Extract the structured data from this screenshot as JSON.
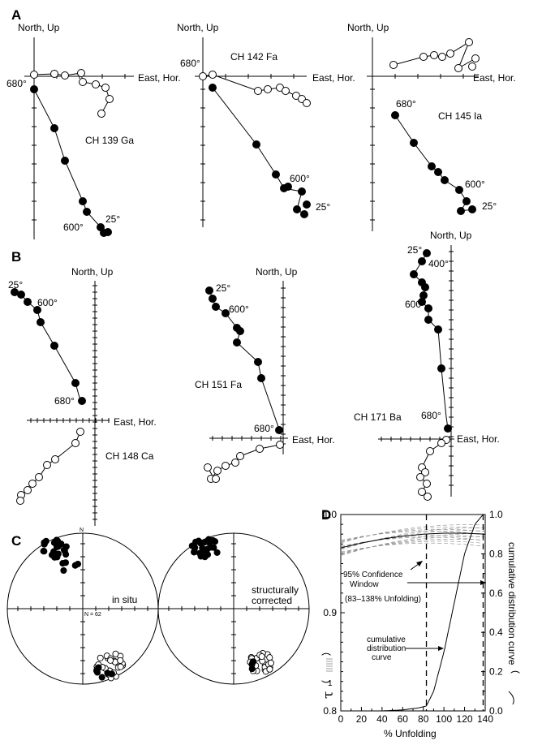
{
  "panels": {
    "A": {
      "letter": "A",
      "plots": [
        {
          "label": "CH 139 Ga",
          "axis_north": "North, Up",
          "axis_east": "East, Hor.",
          "steps": [
            "680°",
            "600°",
            "25°"
          ]
        },
        {
          "label": "CH 142 Fa",
          "axis_north": "North, Up",
          "axis_east": "East, Hor.",
          "steps": [
            "680°",
            "600°",
            "25°"
          ]
        },
        {
          "label": "CH 145 Ia",
          "axis_north": "North, Up",
          "axis_east": "East, Hor.",
          "steps": [
            "680°",
            "600°",
            "25°"
          ]
        }
      ]
    },
    "B": {
      "letter": "B",
      "plots": [
        {
          "label": "CH 148 Ca",
          "axis_north": "North, Up",
          "axis_east": "East, Hor.",
          "steps": [
            "25°",
            "600°",
            "680°"
          ]
        },
        {
          "label": "CH 151 Fa",
          "axis_north": "North, Up",
          "axis_east": "East, Hor.",
          "steps": [
            "25°",
            "600°",
            "680°"
          ]
        },
        {
          "label": "CH 171 Ba",
          "axis_north": "North, Up",
          "axis_east": "East, Hor.",
          "steps": [
            "25°",
            "400°",
            "600°",
            "680°"
          ]
        }
      ]
    },
    "C": {
      "letter": "C",
      "north": "N",
      "count": "N = 62",
      "left_label": "in situ",
      "right_label": [
        "structurally",
        "corrected"
      ]
    },
    "D": {
      "letter": "D",
      "xlabel": "% Unfolding",
      "ylabel_right": "cumulative distribution curve",
      "ylabel_left_symbol": "τ",
      "ylabel_left_sub": "1",
      "ylabel_left_paren_open": "(",
      "ylabel_left_paren_close": ")",
      "xticks": [
        "0",
        "20",
        "40",
        "60",
        "80",
        "100",
        "120",
        "140"
      ],
      "yticks_left": [
        "1.0",
        "0.9",
        "0.8"
      ],
      "yticks_right": [
        "1.0",
        "0.8",
        "0.6",
        "0.4",
        "0.2",
        "0.0"
      ],
      "annotation_window": [
        "95% Confidence",
        "Window"
      ],
      "annotation_window_range": "(83–138% Unfolding)",
      "annotation_cdf": [
        "cumulative",
        "distribution",
        "curve"
      ]
    }
  },
  "chart_data": {
    "type": "line",
    "title": "",
    "xlabel": "% Unfolding",
    "ylabel": "τ1",
    "ylabel_right": "cumulative distribution curve",
    "xlim": [
      0,
      140
    ],
    "ylim": [
      0.8,
      1.0
    ],
    "ylim_right": [
      0.0,
      1.0
    ],
    "confidence_window": [
      83,
      138
    ],
    "series": [
      {
        "x": [
          0,
          20,
          40,
          60,
          80,
          100,
          120,
          140
        ],
        "y": [
          0.966,
          0.971,
          0.975,
          0.978,
          0.98,
          0.981,
          0.981,
          0.98
        ]
      },
      {
        "x": [
          0,
          40,
          60,
          75,
          83,
          90,
          100,
          110,
          120,
          130,
          138,
          140
        ],
        "y": [
          0.0,
          0.0,
          0.005,
          0.015,
          0.025,
          0.1,
          0.3,
          0.55,
          0.8,
          0.95,
          1.0,
          1.0
        ]
      }
    ]
  }
}
